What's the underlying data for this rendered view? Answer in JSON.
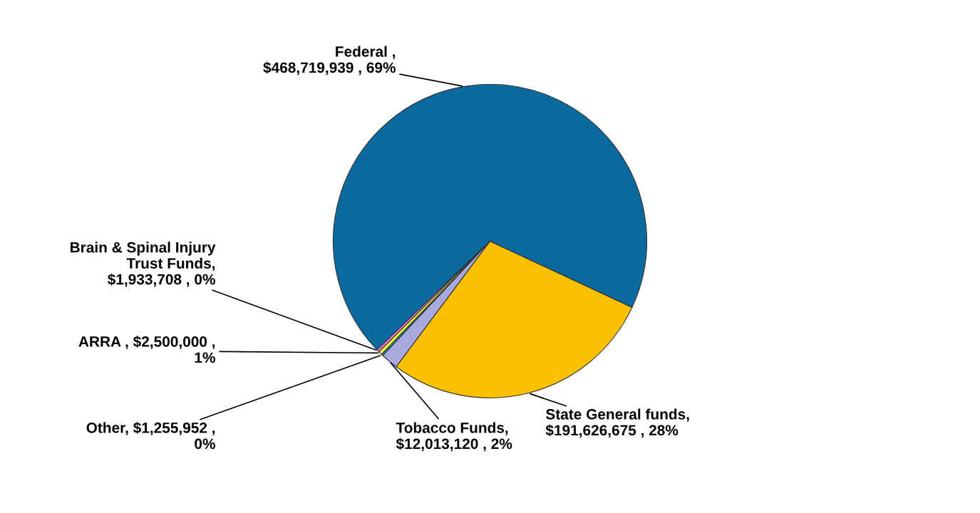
{
  "chart_data": {
    "type": "pie",
    "categories": [
      "State General funds,\n$191,626,675 , 28%",
      "Tobacco Funds,\n$12,013,120 , 2%",
      "Other, $1,255,952 ,\n0%",
      "ARRA , $2,500,000 ,\n1%",
      "Brain & Spinal Injury\nTrust Funds,\n$1,933,708 , 0%",
      "Federal ,\n$468,719,939 , 69%"
    ],
    "values": [
      191626675,
      12013120,
      1255952,
      2500000,
      1933708,
      468719939
    ],
    "colors": [
      "#fbc000",
      "#a9a9e0",
      "#1a9cb0",
      "#ffff33",
      "#ff77dd",
      "#0a6aa0"
    ],
    "legend": false
  }
}
